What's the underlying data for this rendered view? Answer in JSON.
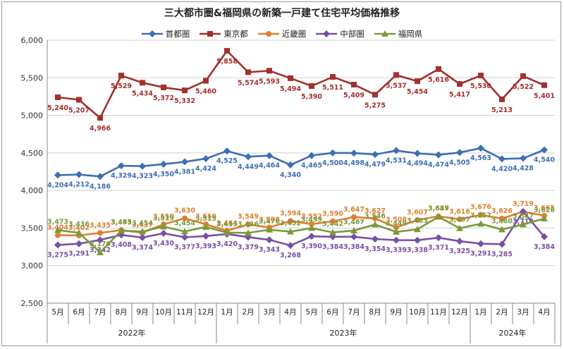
{
  "chart_data": {
    "type": "line",
    "title": "三大都市圏&福岡県の新築一戸建て住宅平均価格推移",
    "xlabel": "",
    "ylabel": "",
    "ylim": [
      2500,
      6000
    ],
    "yticks": [
      "2,500",
      "3,000",
      "3,500",
      "4,000",
      "4,500",
      "5,000",
      "5,500",
      "6,000"
    ],
    "grid": true,
    "legend_position": "top",
    "categories": [
      "5月",
      "6月",
      "7月",
      "8月",
      "9月",
      "10月",
      "11月",
      "12月",
      "1月",
      "2月",
      "3月",
      "4月",
      "5月",
      "6月",
      "7月",
      "8月",
      "9月",
      "10月",
      "11月",
      "12月",
      "1月",
      "2月",
      "3月",
      "4月"
    ],
    "year_groups": [
      {
        "label": "2022年",
        "start": 0,
        "end": 7
      },
      {
        "label": "2023年",
        "start": 8,
        "end": 19
      },
      {
        "label": "2024年",
        "start": 20,
        "end": 23
      }
    ],
    "series": [
      {
        "name": "首都圏",
        "color": "#3d6eb4",
        "marker": "diamond",
        "values": [
          4204,
          4212,
          4186,
          4329,
          4323,
          4350,
          4381,
          4424,
          4525,
          4449,
          4464,
          4340,
          4465,
          4500,
          4498,
          4479,
          4531,
          4494,
          4474,
          4505,
          4563,
          4420,
          4428,
          4540
        ],
        "labels": [
          "4,204",
          "4,212",
          "4,186",
          "4,329",
          "4,323",
          "4,350",
          "4,381",
          "4,424",
          "4,525",
          "4,449",
          "4,464",
          "4,340",
          "4,465",
          "4,500",
          "4,498",
          "4,479",
          "4,531",
          "4,494",
          "4,474",
          "4,505",
          "4,563",
          "4,420",
          "4,428",
          "4,540"
        ]
      },
      {
        "name": "東京都",
        "color": "#a3302e",
        "marker": "square",
        "values": [
          5240,
          5207,
          4966,
          5529,
          5434,
          5372,
          5332,
          5460,
          5858,
          5574,
          5593,
          5494,
          5390,
          5511,
          5409,
          5275,
          5537,
          5454,
          5616,
          5417,
          5530,
          5213,
          5522,
          5401
        ],
        "labels": [
          "5,240",
          "5,207",
          "4,966",
          "5,529",
          "5,434",
          "5,372",
          "5,332",
          "5,460",
          "5,858",
          "5,574",
          "5,593",
          "5,494",
          "5,390",
          "5,511",
          "5,409",
          "5,275",
          "5,537",
          "5,454",
          "5,616",
          "5,417",
          "5,530",
          "5,213",
          "5,522",
          "5,401"
        ]
      },
      {
        "name": "近畿圏",
        "color": "#e07f2e",
        "marker": "circle",
        "values": [
          3404,
          3402,
          3435,
          3473,
          3437,
          3550,
          3630,
          3550,
          3464,
          3549,
          3508,
          3594,
          3552,
          3590,
          3647,
          3627,
          3508,
          3607,
          3657,
          3616,
          3676,
          3626,
          3719,
          3665
        ],
        "labels": [
          "3,404",
          "3,402",
          "3,435",
          "3,473",
          "3,437",
          "3,550",
          "3,630",
          "3,550",
          "3,464",
          "3,549",
          "3,508",
          "3,594",
          "3,552",
          "3,590",
          "3,647",
          "3,627",
          "3,508",
          "3,607",
          "3,657",
          "3,616",
          "3,676",
          "3,626",
          "3,719",
          "3,665"
        ]
      },
      {
        "name": "中部圏",
        "color": "#7b4fa3",
        "marker": "diamond",
        "values": [
          3275,
          3291,
          3342,
          3408,
          3374,
          3430,
          3377,
          3393,
          3420,
          3379,
          3343,
          3268,
          3390,
          3384,
          3384,
          3354,
          3339,
          3338,
          3371,
          3325,
          3291,
          3285,
          3719,
          3384
        ],
        "labels": [
          "3,275",
          "3,291",
          "3,342",
          "3,408",
          "3,374",
          "3,430",
          "3,377",
          "3,393",
          "3,420",
          "3,379",
          "3,343",
          "3,268",
          "3,390",
          "3,384",
          "3,384",
          "3,354",
          "3,339",
          "3,338",
          "3,371",
          "3,325",
          "3,291",
          "3,285",
          "3,719",
          "3,384"
        ]
      },
      {
        "name": "福岡県",
        "color": "#7a9a3a",
        "marker": "triangle",
        "values": [
          3473,
          3436,
          3176,
          3465,
          3454,
          3519,
          3454,
          3515,
          3439,
          3436,
          3478,
          3452,
          3499,
          3442,
          3467,
          3546,
          3449,
          3483,
          3649,
          3497,
          3557,
          3480,
          3547,
          3626
        ],
        "labels": [
          "3,473",
          "3,436",
          "3,176",
          "3,465",
          "3,454",
          "3,519",
          "3,454",
          "3,515",
          "3,439",
          "3,436",
          "3,478",
          "3,452",
          "3,499",
          "3,442",
          "3,467",
          "3,546",
          "3,449",
          "3,483",
          "3,649",
          "3,497",
          "3,557",
          "3,480",
          "3,547",
          "3,626"
        ]
      }
    ]
  }
}
